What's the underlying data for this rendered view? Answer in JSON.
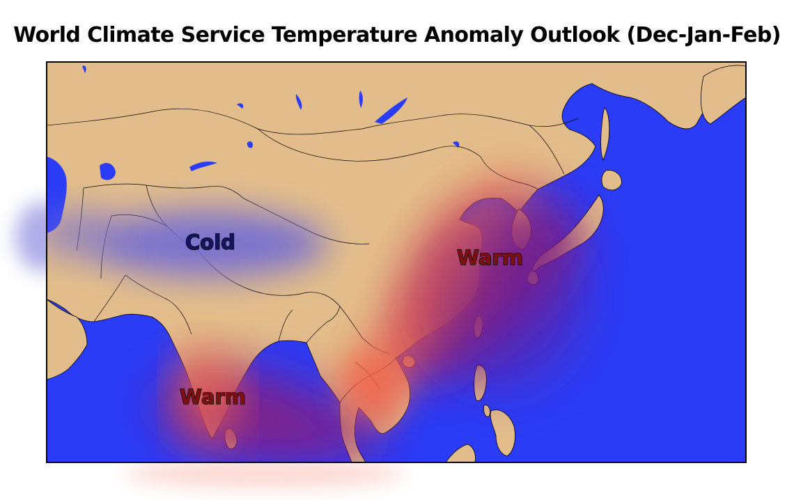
{
  "title": "World Climate Service Temperature Anomaly Outlook (Dec-Jan-Feb)",
  "colors": {
    "ocean": "#2a3cf5",
    "land": "#e2bd8b",
    "border": "#000000",
    "warm": "#f2614a",
    "warm_deep": "#8a1f7a",
    "cold": "#6f6ad6",
    "warm_label": "#7d1010",
    "cold_label": "#14145f"
  },
  "labels": {
    "cold": "Cold",
    "warm_east": "Warm",
    "warm_south": "Warm"
  }
}
